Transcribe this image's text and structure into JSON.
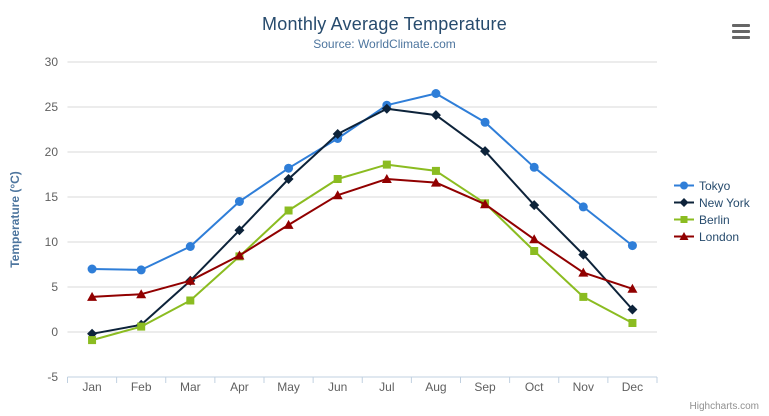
{
  "chart_data": {
    "type": "line",
    "title": "Monthly Average Temperature",
    "subtitle": "Source: WorldClimate.com",
    "xlabel": "",
    "ylabel": "Temperature (°C)",
    "ylim": [
      -5,
      30
    ],
    "yticks": [
      -5,
      0,
      5,
      10,
      15,
      20,
      25,
      30
    ],
    "grid": true,
    "legend_position": "right",
    "categories": [
      "Jan",
      "Feb",
      "Mar",
      "Apr",
      "May",
      "Jun",
      "Jul",
      "Aug",
      "Sep",
      "Oct",
      "Nov",
      "Dec"
    ],
    "series": [
      {
        "name": "Tokyo",
        "color": "#2f7ed8",
        "marker": "circle",
        "values": [
          7.0,
          6.9,
          9.5,
          14.5,
          18.2,
          21.5,
          25.2,
          26.5,
          23.3,
          18.3,
          13.9,
          9.6
        ]
      },
      {
        "name": "New York",
        "color": "#0d233a",
        "marker": "diamond",
        "values": [
          -0.2,
          0.8,
          5.7,
          11.3,
          17.0,
          22.0,
          24.8,
          24.1,
          20.1,
          14.1,
          8.6,
          2.5
        ]
      },
      {
        "name": "Berlin",
        "color": "#8bbc21",
        "marker": "square",
        "values": [
          -0.9,
          0.6,
          3.5,
          8.4,
          13.5,
          17.0,
          18.6,
          17.9,
          14.3,
          9.0,
          3.9,
          1.0
        ]
      },
      {
        "name": "London",
        "color": "#910000",
        "marker": "triangle",
        "values": [
          3.9,
          4.2,
          5.7,
          8.5,
          11.9,
          15.2,
          17.0,
          16.6,
          14.2,
          10.3,
          6.6,
          4.8
        ]
      }
    ]
  },
  "credits": {
    "label": "Highcharts.com"
  },
  "export_menu": {
    "icon": "hamburger-menu-icon"
  },
  "colors": {
    "background": "#ffffff",
    "title": "#274b6d",
    "subtitle": "#4d759e",
    "axis_title": "#4d759e",
    "tick_label": "#606060",
    "grid": "#d8d8d8",
    "axis_line": "#c0d0e0",
    "legend_text": "#274b6d",
    "credits": "#909090",
    "menu_icon": "#666666"
  }
}
